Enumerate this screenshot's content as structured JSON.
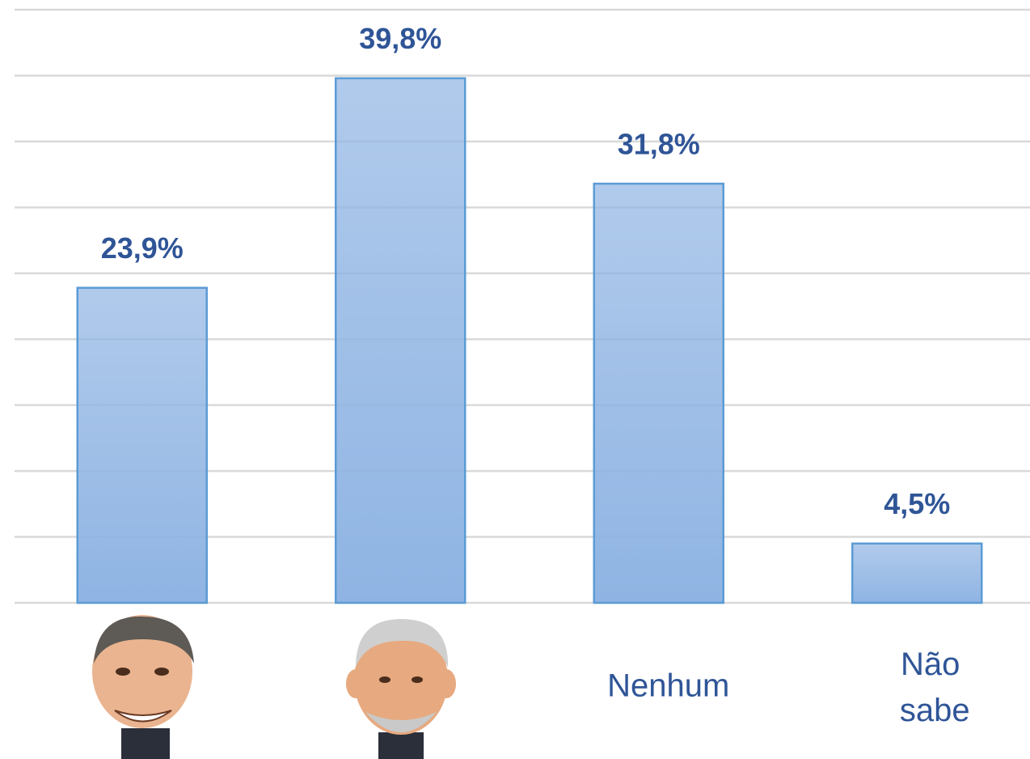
{
  "chart_data": {
    "type": "bar",
    "categories": [
      null,
      null,
      "Nenhum",
      "Não sabe"
    ],
    "values": [
      23.9,
      39.8,
      31.8,
      4.5
    ],
    "value_labels": [
      "23,9%",
      "39,8%",
      "31,8%",
      "4,5%"
    ],
    "color": "#8fb4e3",
    "edge_color": "#5b9bd5",
    "label_color": "#2f5597",
    "ylim": [
      0,
      45
    ],
    "yticks": [
      0,
      5,
      10,
      15,
      20,
      25,
      30,
      35,
      40,
      45
    ],
    "grid": true
  }
}
